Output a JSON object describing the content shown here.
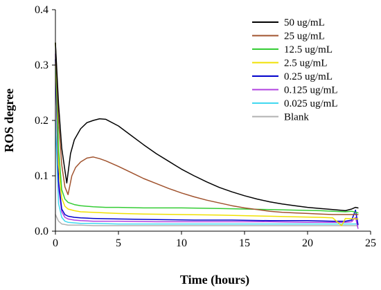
{
  "chart_data": {
    "type": "line",
    "xlabel": "Time (hours)",
    "ylabel": "ROS degree",
    "xlim": [
      0,
      25
    ],
    "ylim": [
      0,
      0.4
    ],
    "xticks": [
      "0",
      "5",
      "10",
      "15",
      "20",
      "25"
    ],
    "yticks": [
      "0.0",
      "0.1",
      "0.2",
      "0.3",
      "0.4"
    ],
    "grid": false,
    "legend_position": "top-right",
    "series": [
      {
        "name": "50 ug/mL",
        "color": "#000000",
        "x": [
          0,
          0.25,
          0.5,
          0.75,
          0.9,
          1.2,
          1.5,
          2,
          2.5,
          3,
          3.5,
          4,
          5,
          6,
          7,
          8,
          9,
          10,
          11,
          12,
          13,
          14,
          15,
          16,
          17,
          18,
          19,
          20,
          21,
          22,
          23,
          23.5,
          23.8,
          24
        ],
        "y": [
          0.34,
          0.23,
          0.15,
          0.11,
          0.087,
          0.14,
          0.165,
          0.185,
          0.196,
          0.2,
          0.203,
          0.202,
          0.19,
          0.173,
          0.156,
          0.14,
          0.126,
          0.112,
          0.1,
          0.089,
          0.079,
          0.071,
          0.064,
          0.058,
          0.053,
          0.049,
          0.046,
          0.043,
          0.041,
          0.039,
          0.037,
          0.04,
          0.043,
          0.042
        ]
      },
      {
        "name": "25 ug/mL",
        "color": "#a0522d",
        "x": [
          0,
          0.25,
          0.5,
          0.75,
          1.0,
          1.3,
          1.6,
          2,
          2.5,
          3,
          3.5,
          4,
          5,
          6,
          7,
          8,
          9,
          10,
          11,
          12,
          13,
          14,
          15,
          16,
          17,
          18,
          19,
          20,
          21,
          22,
          23,
          24
        ],
        "y": [
          0.34,
          0.2,
          0.12,
          0.08,
          0.066,
          0.1,
          0.115,
          0.125,
          0.132,
          0.134,
          0.131,
          0.127,
          0.117,
          0.106,
          0.095,
          0.086,
          0.077,
          0.069,
          0.062,
          0.056,
          0.051,
          0.046,
          0.042,
          0.039,
          0.036,
          0.034,
          0.033,
          0.032,
          0.031,
          0.03,
          0.03,
          0.03
        ]
      },
      {
        "name": "12.5 ug/mL",
        "color": "#33cc33",
        "x": [
          0,
          0.25,
          0.5,
          0.75,
          1,
          1.5,
          2,
          3,
          4,
          5,
          7,
          10,
          13,
          15,
          17,
          19,
          21,
          22,
          23,
          23.5,
          24
        ],
        "y": [
          0.34,
          0.15,
          0.075,
          0.058,
          0.052,
          0.048,
          0.046,
          0.044,
          0.043,
          0.043,
          0.042,
          0.042,
          0.041,
          0.04,
          0.039,
          0.038,
          0.037,
          0.036,
          0.035,
          0.036,
          0.033
        ]
      },
      {
        "name": "2.5 ug/mL",
        "color": "#f0e000",
        "x": [
          0,
          0.25,
          0.5,
          0.75,
          1,
          1.5,
          2,
          3,
          4,
          5,
          7,
          10,
          13,
          15,
          17,
          19,
          21,
          22,
          22.7,
          23,
          24
        ],
        "y": [
          0.34,
          0.12,
          0.06,
          0.045,
          0.04,
          0.037,
          0.035,
          0.034,
          0.033,
          0.032,
          0.031,
          0.03,
          0.029,
          0.028,
          0.027,
          0.026,
          0.025,
          0.024,
          0.01,
          0.023,
          0.022
        ]
      },
      {
        "name": "0.25 ug/mL",
        "color": "#0000cc",
        "x": [
          0,
          0.25,
          0.5,
          0.75,
          1,
          1.5,
          2,
          3,
          5,
          8,
          11,
          14,
          17,
          20,
          22,
          23,
          23.5,
          23.8,
          24
        ],
        "y": [
          0.31,
          0.09,
          0.04,
          0.03,
          0.027,
          0.025,
          0.024,
          0.023,
          0.022,
          0.021,
          0.02,
          0.02,
          0.019,
          0.019,
          0.018,
          0.018,
          0.02,
          0.038,
          0.012
        ]
      },
      {
        "name": "0.125 ug/mL",
        "color": "#b040e0",
        "x": [
          0,
          0.25,
          0.5,
          0.75,
          1,
          1.5,
          2,
          3,
          5,
          8,
          11,
          14,
          17,
          20,
          22,
          23,
          23.5,
          23.8,
          24
        ],
        "y": [
          0.32,
          0.08,
          0.035,
          0.025,
          0.022,
          0.02,
          0.019,
          0.018,
          0.018,
          0.017,
          0.017,
          0.017,
          0.017,
          0.016,
          0.016,
          0.016,
          0.017,
          0.025,
          0.005
        ]
      },
      {
        "name": "0.025 ug/mL",
        "color": "#40d8f0",
        "x": [
          0,
          0.25,
          0.5,
          0.75,
          1,
          1.5,
          2,
          3,
          5,
          8,
          11,
          14,
          17,
          20,
          22,
          24
        ],
        "y": [
          0.2,
          0.05,
          0.025,
          0.018,
          0.016,
          0.015,
          0.014,
          0.014,
          0.013,
          0.013,
          0.013,
          0.013,
          0.013,
          0.013,
          0.013,
          0.013
        ]
      },
      {
        "name": "Blank",
        "color": "#b0b0b0",
        "x": [
          0,
          0.25,
          0.5,
          0.75,
          1,
          1.5,
          2,
          3,
          5,
          8,
          11,
          14,
          17,
          20,
          22,
          24
        ],
        "y": [
          0.03,
          0.018,
          0.013,
          0.012,
          0.011,
          0.011,
          0.011,
          0.01,
          0.01,
          0.01,
          0.01,
          0.01,
          0.01,
          0.01,
          0.01,
          0.01
        ]
      }
    ]
  }
}
